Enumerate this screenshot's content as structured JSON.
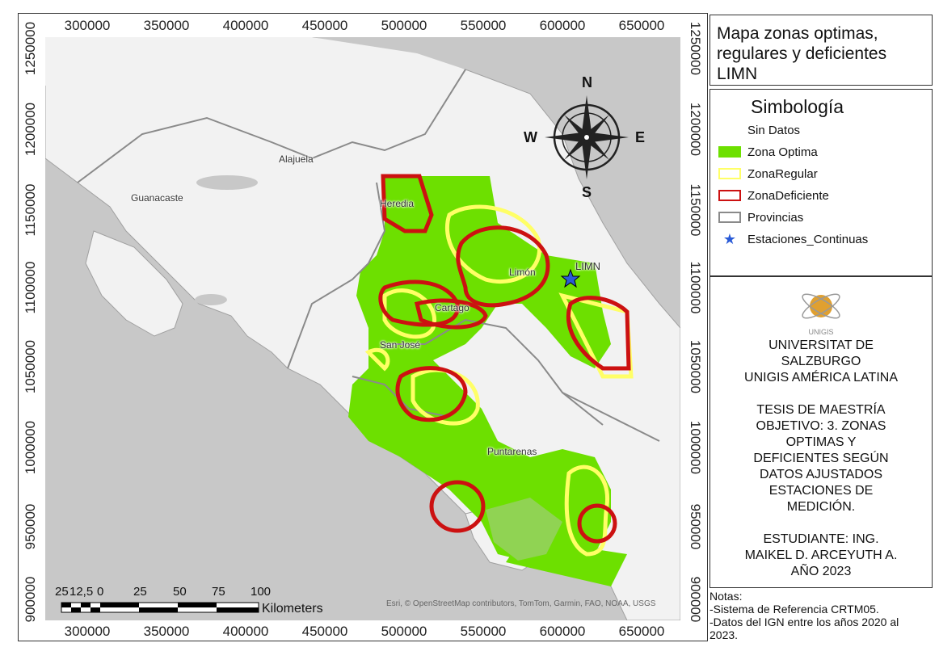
{
  "ticks": {
    "x": [
      "300000",
      "350000",
      "400000",
      "450000",
      "500000",
      "550000",
      "600000",
      "650000"
    ],
    "y": [
      "1250000",
      "1200000",
      "1150000",
      "1100000",
      "1050000",
      "1000000",
      "950000",
      "900000"
    ]
  },
  "places": {
    "guanacaste": "Guanacaste",
    "alajuela": "Alajuela",
    "heredia": "Heredia",
    "limon": "Limón",
    "cartago": "Cartago",
    "san_jose": "San José",
    "puntarenas": "Puntarenas",
    "station": "LIMN"
  },
  "compass": {
    "n": "N",
    "s": "S",
    "e": "E",
    "w": "W"
  },
  "title": "Mapa zonas optimas, regulares y deficientes LIMN",
  "legend": {
    "title": "Simbología",
    "items": [
      {
        "label": "Sin Datos",
        "type": "none"
      },
      {
        "label": "Zona Optima",
        "type": "fill",
        "color": "#6de000"
      },
      {
        "label": "ZonaRegular",
        "type": "outline",
        "color": "#ffff66"
      },
      {
        "label": "ZonaDeficiente",
        "type": "outline",
        "color": "#cc1111"
      },
      {
        "label": "Provincias",
        "type": "outline",
        "color": "#8a8a8a"
      },
      {
        "label": "Estaciones_Continuas",
        "type": "star",
        "color": "#2a5bd7"
      }
    ]
  },
  "institution": {
    "logo_text": "UNIGIS",
    "lines1": [
      "UNIVERSITAT DE",
      "SALZBURGO",
      "UNIGIS AMÉRICA LATINA"
    ],
    "lines2": [
      "TESIS DE MAESTRÍA",
      "OBJETIVO: 3. ZONAS",
      "OPTIMAS Y",
      "DEFICIENTES SEGÚN",
      "DATOS AJUSTADOS",
      "ESTACIONES DE",
      "MEDICIÓN."
    ],
    "lines3": [
      "ESTUDIANTE: ING.",
      "MAIKEL D. ARCEYUTH A.",
      "AÑO 2023"
    ]
  },
  "notes": [
    "Notas:",
    "-Sistema de Referencia CRTM05.",
    "-Datos del IGN entre los años 2020 al",
    "2023."
  ],
  "scalebar": {
    "labels": [
      "25",
      "12,5",
      "0",
      "25",
      "50",
      "75",
      "100"
    ],
    "unit": "Kilometers"
  },
  "attribution": "Esri, © OpenStreetMap contributors, TomTom, Garmin, FAO, NOAA, USGS",
  "colors": {
    "ocean": "#c8c8c8",
    "land": "#f2f2f2",
    "optima": "#6de000",
    "regular": "#ffff66",
    "deficiente": "#cc1111",
    "provincias": "#8a8a8a"
  }
}
